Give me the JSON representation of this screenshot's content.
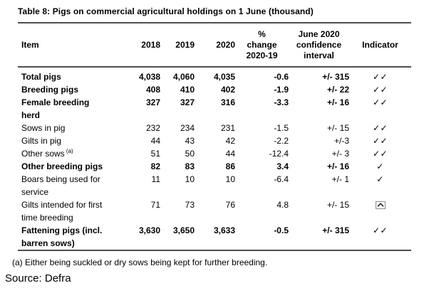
{
  "title": "Table 8: Pigs on commercial agricultural holdings on 1 June (thousand)",
  "footnote": "(a) Either being suckled or dry sows being kept for further breeding.",
  "source": "Source: Defra",
  "colors": {
    "rule": "#4d4d4d",
    "text": "#000000",
    "box_icon_border": "#8a8a8a"
  },
  "table": {
    "columns": [
      {
        "label": "Item"
      },
      {
        "label": "2018"
      },
      {
        "label": "2019"
      },
      {
        "label": "2020"
      },
      {
        "label": "%\nchange\n2020-19"
      },
      {
        "label": "June 2020\nconfidence\ninterval"
      },
      {
        "label": "Indicator"
      }
    ],
    "indicator_glyphs": {
      "check-double": "✓✓",
      "check-single": "✓"
    },
    "rows": [
      {
        "item": "Total pigs",
        "bold": true,
        "y2018": "4,038",
        "y2019": "4,060",
        "y2020": "4,035",
        "change": "-0.6",
        "ci": "+/- 315",
        "indicator": "check-double"
      },
      {
        "item": "Breeding pigs",
        "bold": true,
        "y2018": "408",
        "y2019": "410",
        "y2020": "402",
        "change": "-1.9",
        "ci": "+/- 22",
        "indicator": "check-double"
      },
      {
        "item": "Female breeding\nherd",
        "bold": true,
        "y2018": "327",
        "y2019": "327",
        "y2020": "316",
        "change": "-3.3",
        "ci": "+/- 16",
        "indicator": "check-double"
      },
      {
        "item": "Sows in pig",
        "bold": false,
        "y2018": "232",
        "y2019": "234",
        "y2020": "231",
        "change": "-1.5",
        "ci": "+/- 15",
        "indicator": "check-double"
      },
      {
        "item": "Gilts in pig",
        "bold": false,
        "y2018": "44",
        "y2019": "43",
        "y2020": "42",
        "change": "-2.2",
        "ci": "+/-3",
        "indicator": "check-double"
      },
      {
        "item": "Other sows",
        "marker": "(a)",
        "bold": false,
        "y2018": "51",
        "y2019": "50",
        "y2020": "44",
        "change": "-12.4",
        "ci": "+/- 3",
        "indicator": "check-double"
      },
      {
        "item": "Other breeding pigs",
        "bold": true,
        "y2018": "82",
        "y2019": "83",
        "y2020": "86",
        "change": "3.4",
        "ci": "+/- 16",
        "indicator": "check-single"
      },
      {
        "item": "Boars being used for\nservice",
        "bold": false,
        "y2018": "11",
        "y2019": "10",
        "y2020": "10",
        "change": "-6.4",
        "ci": "+/- 1",
        "indicator": "check-single"
      },
      {
        "item": "Gilts intended for first\ntime breeding",
        "bold": false,
        "y2018": "71",
        "y2019": "73",
        "y2020": "76",
        "change": "4.8",
        "ci": "+/- 15",
        "indicator": "boxed-caret"
      },
      {
        "item": "Fattening pigs (incl.\nbarren sows)",
        "bold": true,
        "y2018": "3,630",
        "y2019": "3,650",
        "y2020": "3,633",
        "change": "-0.5",
        "ci": "+/- 315",
        "indicator": "check-double"
      }
    ]
  },
  "chart_data": {
    "type": "table",
    "title": "Table 8: Pigs on commercial agricultural holdings on 1 June (thousand)",
    "columns": [
      "Item",
      "2018",
      "2019",
      "2020",
      "% change 2020-19",
      "June 2020 confidence interval",
      "Indicator"
    ],
    "rows": [
      [
        "Total pigs",
        4038,
        4060,
        4035,
        -0.6,
        "+/- 315",
        "✓✓"
      ],
      [
        "Breeding pigs",
        408,
        410,
        402,
        -1.9,
        "+/- 22",
        "✓✓"
      ],
      [
        "Female breeding herd",
        327,
        327,
        316,
        -3.3,
        "+/- 16",
        "✓✓"
      ],
      [
        "Sows in pig",
        232,
        234,
        231,
        -1.5,
        "+/- 15",
        "✓✓"
      ],
      [
        "Gilts in pig",
        44,
        43,
        42,
        -2.2,
        "+/-3",
        "✓✓"
      ],
      [
        "Other sows (a)",
        51,
        50,
        44,
        -12.4,
        "+/- 3",
        "✓✓"
      ],
      [
        "Other breeding pigs",
        82,
        83,
        86,
        3.4,
        "+/- 16",
        "✓"
      ],
      [
        "Boars being used for service",
        11,
        10,
        10,
        -6.4,
        "+/- 1",
        "✓"
      ],
      [
        "Gilts intended for first time breeding",
        71,
        73,
        76,
        4.8,
        "+/- 15",
        "boxed-caret-symbol"
      ],
      [
        "Fattening pigs (incl. barren sows)",
        3630,
        3650,
        3633,
        -0.5,
        "+/- 315",
        "✓✓"
      ]
    ],
    "emphasized_rows": [
      0,
      1,
      2,
      6,
      9
    ],
    "footnote": "(a) Either being suckled or dry sows being kept for further breeding.",
    "source": "Source: Defra"
  }
}
